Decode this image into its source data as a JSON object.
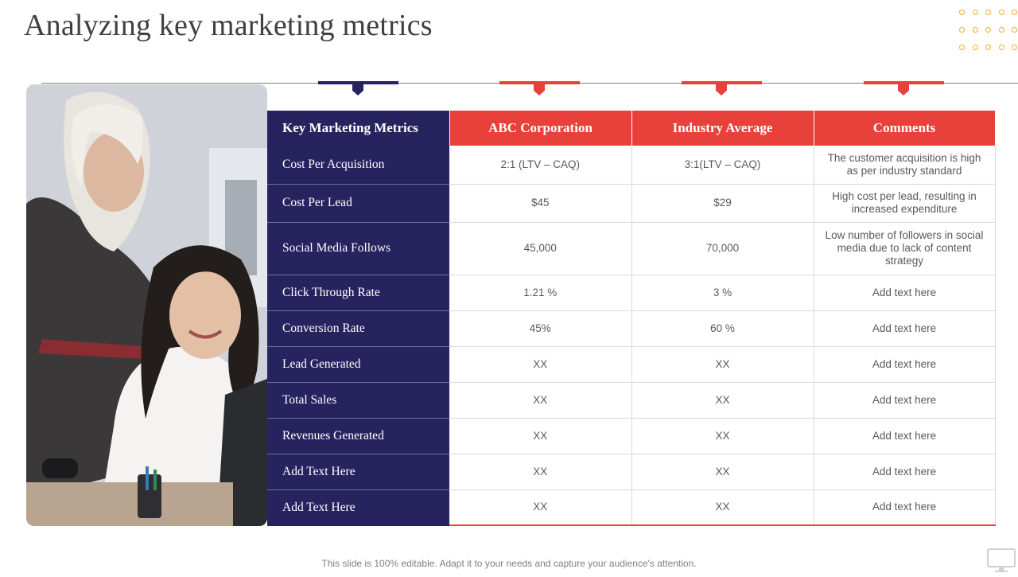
{
  "slide": {
    "title": "Analyzing key marketing metrics",
    "footer": "This slide is 100% editable. Adapt it to your needs and capture your audience's attention.",
    "colors": {
      "navy": "#27235f",
      "red": "#e8403a",
      "accent_dots": "#f2b01e"
    }
  },
  "table": {
    "headers": [
      "Key Marketing Metrics",
      "ABC Corporation",
      "Industry Average",
      "Comments"
    ],
    "rows": [
      {
        "metric": "Cost Per Acquisition",
        "abc": "2:1 (LTV – CAQ)",
        "industry": "3:1(LTV – CAQ)",
        "comment": "The customer acquisition is high as per industry standard"
      },
      {
        "metric": "Cost Per Lead",
        "abc": "$45",
        "industry": "$29",
        "comment": "High cost per lead, resulting in increased expenditure"
      },
      {
        "metric": "Social Media Follows",
        "abc": "45,000",
        "industry": "70,000",
        "comment": "Low number of followers in social media due to lack of content strategy"
      },
      {
        "metric": "Click Through Rate",
        "abc": "1.21 %",
        "industry": "3 %",
        "comment": "Add text here"
      },
      {
        "metric": "Conversion Rate",
        "abc": "45%",
        "industry": "60 %",
        "comment": "Add text here"
      },
      {
        "metric": "Lead Generated",
        "abc": "XX",
        "industry": "XX",
        "comment": "Add text here"
      },
      {
        "metric": "Total Sales",
        "abc": "XX",
        "industry": "XX",
        "comment": "Add text here"
      },
      {
        "metric": "Revenues Generated",
        "abc": "XX",
        "industry": "XX",
        "comment": "Add text here"
      },
      {
        "metric": "Add Text Here",
        "abc": "XX",
        "industry": "XX",
        "comment": "Add text here"
      },
      {
        "metric": "Add Text Here",
        "abc": "XX",
        "industry": "XX",
        "comment": "Add text here"
      }
    ]
  }
}
